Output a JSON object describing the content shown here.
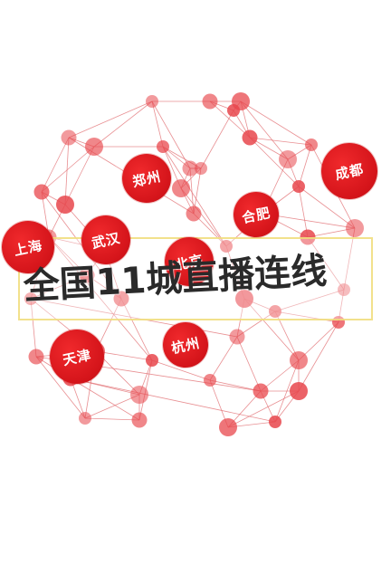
{
  "headline": "全国11城直播连线",
  "cities": {
    "shanghai": "上海",
    "wuhan": "武汉",
    "zhengzhou": "郑州",
    "beijing": "北京",
    "hefei": "合肥",
    "chengdu": "成都",
    "tianjin": "天津",
    "hangzhou": "杭州"
  },
  "colors": {
    "node": "#e8474c",
    "city_fill": "#d4141a",
    "line": "#e06a6e",
    "headline": "#2a2a2a",
    "banner_border": "#f0dc78"
  }
}
